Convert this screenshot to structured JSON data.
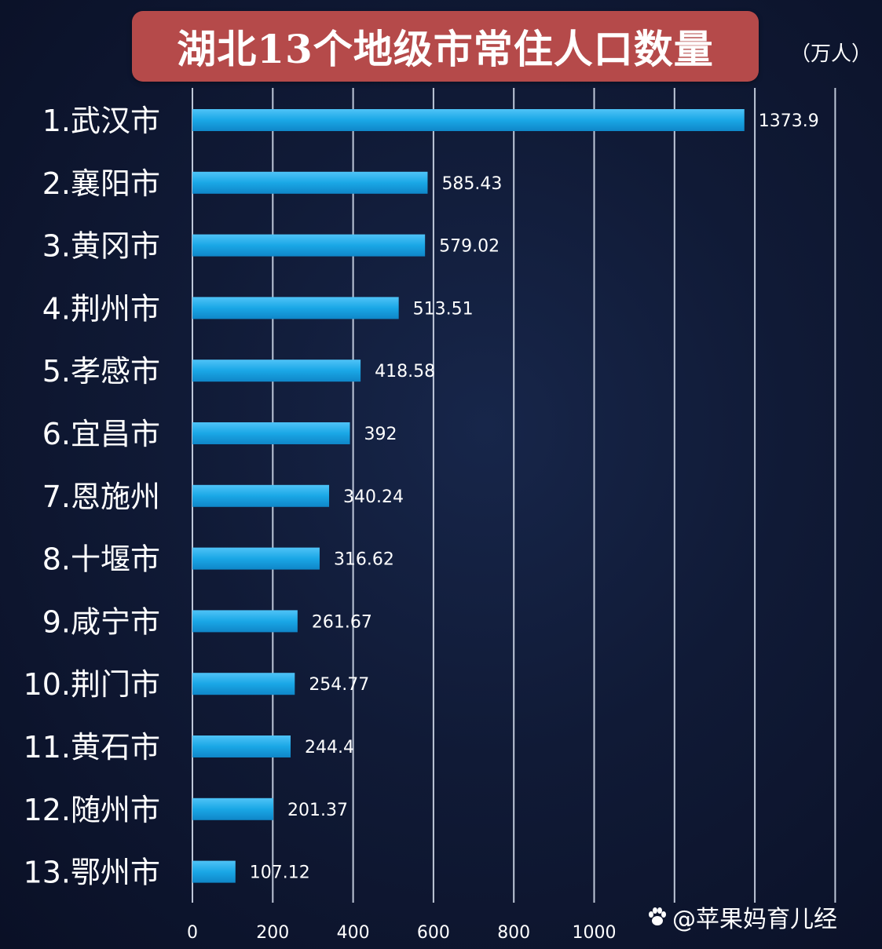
{
  "chart_data": {
    "type": "bar",
    "orientation": "horizontal",
    "title": "湖北13个地级市常住人口数量",
    "unit": "（万人）",
    "categories": [
      "1.武汉市",
      "2.襄阳市",
      "3.黄冈市",
      "4.荆州市",
      "5.孝感市",
      "6.宜昌市",
      "7.恩施州",
      "8.十堰市",
      "9.咸宁市",
      "10.荆门市",
      "11.黄石市",
      "12.随州市",
      "13.鄂州市"
    ],
    "values": [
      1373.9,
      585.43,
      579.02,
      513.51,
      418.58,
      392,
      340.24,
      316.62,
      261.67,
      254.77,
      244.4,
      201.37,
      107.12
    ],
    "value_labels": [
      "1373.9",
      "585.43",
      "579.02",
      "513.51",
      "418.58",
      "392",
      "340.24",
      "316.62",
      "261.67",
      "254.77",
      "244.4",
      "201.37",
      "107.12"
    ],
    "xticks": [
      0,
      200,
      400,
      600,
      800,
      1000
    ],
    "xlim": [
      0,
      1600
    ],
    "grid": true,
    "bar_color": "#1aa7e6",
    "background_color": "#111a36"
  },
  "watermark": "@苹果妈育儿经",
  "watermark_icon": "paw-icon"
}
